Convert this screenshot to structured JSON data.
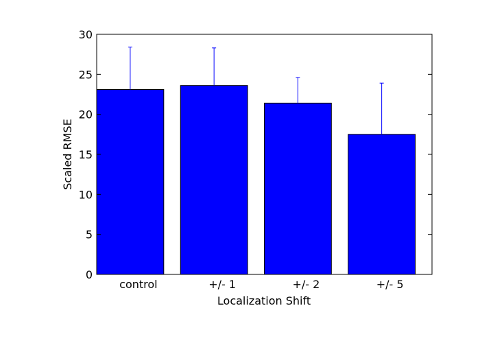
{
  "chart_data": {
    "type": "bar",
    "title": "",
    "xlabel": "Localization Shift",
    "ylabel": "Scaled RMSE",
    "categories": [
      "control",
      "+/- 1",
      "+/- 2",
      "+/- 5"
    ],
    "values": [
      23.1,
      23.6,
      21.4,
      17.5
    ],
    "error_upper": [
      28.4,
      28.3,
      24.6,
      23.9
    ],
    "ylim": [
      0,
      30
    ],
    "yticks": [
      0,
      5,
      10,
      15,
      20,
      25,
      30
    ],
    "ytick_labels": [
      "0",
      "5",
      "10",
      "15",
      "20",
      "25",
      "30"
    ],
    "grid": false,
    "legend": "none",
    "bar_color": "#0000ff",
    "error_color": "#0000ff"
  }
}
